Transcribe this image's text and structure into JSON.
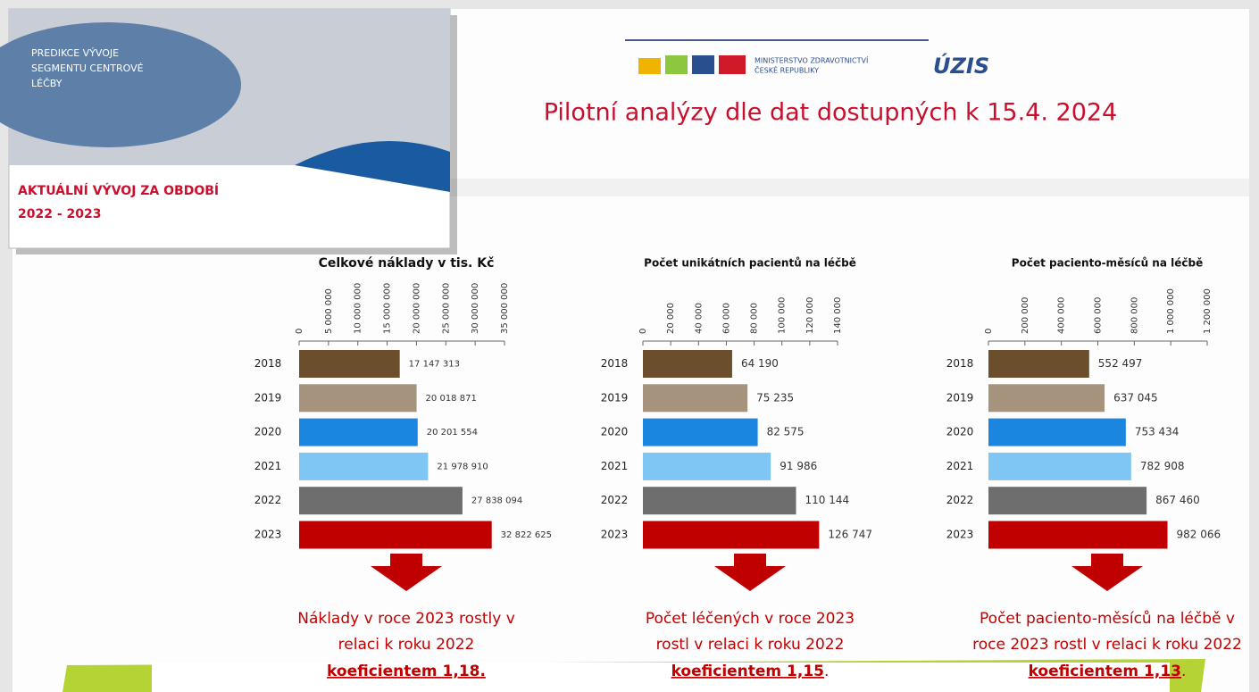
{
  "thumbnail": {
    "title_lines": [
      "PREDIKCE VÝVOJE",
      "SEGMENTU CENTROVÉ",
      "LÉČBY"
    ],
    "subtitle_lines": [
      "AKTUÁLNÍ VÝVOJ ZA OBDOBÍ",
      "2022 - 2023"
    ]
  },
  "logo": {
    "ministry_lines": [
      "MINISTERSTVO ZDRAVOTNICTVÍ",
      "ČESKÉ REPUBLIKY"
    ],
    "uzis": "ÚZIS"
  },
  "title": "Pilotní analýzy dle dat dostupných k 15.4. 2024",
  "chart_data": [
    {
      "type": "bar",
      "orientation": "horizontal",
      "title": "Celkové náklady v tis. Kč",
      "categories": [
        "2018",
        "2019",
        "2020",
        "2021",
        "2022",
        "2023"
      ],
      "values": [
        17147313,
        20018871,
        20201554,
        21978910,
        27838094,
        32822625
      ],
      "value_labels": [
        "17 147 313",
        "20 018 871",
        "20 201 554",
        "21 978 910",
        "27 838 094",
        "32 822 625"
      ],
      "colors": [
        "#6b4f2c",
        "#a6937e",
        "#1a86e0",
        "#80c6f5",
        "#6e6e6e",
        "#c00000"
      ],
      "xlim": [
        0,
        35000000
      ],
      "xticks": [
        0,
        {
          "value": 5000000,
          "label": "5 000 000"
        },
        {
          "value": 10000000,
          "label": "10 000 000"
        },
        {
          "value": 15000000,
          "label": "15 000 000"
        },
        {
          "value": 20000000,
          "label": "20 000 000"
        },
        {
          "value": 25000000,
          "label": "25 000 000"
        },
        {
          "value": 30000000,
          "label": "30 000 000"
        },
        {
          "value": 35000000,
          "label": "35 000 000"
        }
      ],
      "annotation": [
        "Náklady v roce 2023 rostly v",
        "relaci k roku 2022"
      ],
      "annotation_emphasis": "koeficientem 1,18."
    },
    {
      "type": "bar",
      "orientation": "horizontal",
      "title": "Počet unikátních pacientů na léčbě",
      "categories": [
        "2018",
        "2019",
        "2020",
        "2021",
        "2022",
        "2023"
      ],
      "values": [
        64190,
        75235,
        82575,
        91986,
        110144,
        126747
      ],
      "value_labels": [
        "64 190",
        "75 235",
        "82 575",
        "91 986",
        "110 144",
        "126 747"
      ],
      "colors": [
        "#6b4f2c",
        "#a6937e",
        "#1a86e0",
        "#80c6f5",
        "#6e6e6e",
        "#c00000"
      ],
      "xlim": [
        0,
        140000
      ],
      "xticks": [
        0,
        {
          "value": 20000,
          "label": "20 000"
        },
        {
          "value": 40000,
          "label": "40 000"
        },
        {
          "value": 60000,
          "label": "60 000"
        },
        {
          "value": 80000,
          "label": "80 000"
        },
        {
          "value": 100000,
          "label": "100 000"
        },
        {
          "value": 120000,
          "label": "120 000"
        },
        {
          "value": 140000,
          "label": "140 000"
        }
      ],
      "annotation": [
        "Počet léčených v roce 2023",
        "rostl v relaci k roku 2022"
      ],
      "annotation_emphasis": "koeficientem 1,15",
      "annotation_suffix": "."
    },
    {
      "type": "bar",
      "orientation": "horizontal",
      "title": "Počet paciento-měsíců na léčbě",
      "categories": [
        "2018",
        "2019",
        "2020",
        "2021",
        "2022",
        "2023"
      ],
      "values": [
        552497,
        637045,
        753434,
        782908,
        867460,
        982066
      ],
      "value_labels": [
        "552 497",
        "637 045",
        "753 434",
        "782 908",
        "867 460",
        "982 066"
      ],
      "colors": [
        "#6b4f2c",
        "#a6937e",
        "#1a86e0",
        "#80c6f5",
        "#6e6e6e",
        "#c00000"
      ],
      "xlim": [
        0,
        1200000
      ],
      "xticks": [
        0,
        {
          "value": 200000,
          "label": "200 000"
        },
        {
          "value": 400000,
          "label": "400 000"
        },
        {
          "value": 600000,
          "label": "600 000"
        },
        {
          "value": 800000,
          "label": "800 000"
        },
        {
          "value": 1000000,
          "label": "1 000 000"
        },
        {
          "value": 1200000,
          "label": "1 200 000"
        }
      ],
      "annotation": [
        "Počet paciento-měsíců na léčbě v",
        "roce 2023 rostl v relaci k roku 2022"
      ],
      "annotation_emphasis": "koeficientem 1,13",
      "annotation_suffix": "."
    }
  ]
}
